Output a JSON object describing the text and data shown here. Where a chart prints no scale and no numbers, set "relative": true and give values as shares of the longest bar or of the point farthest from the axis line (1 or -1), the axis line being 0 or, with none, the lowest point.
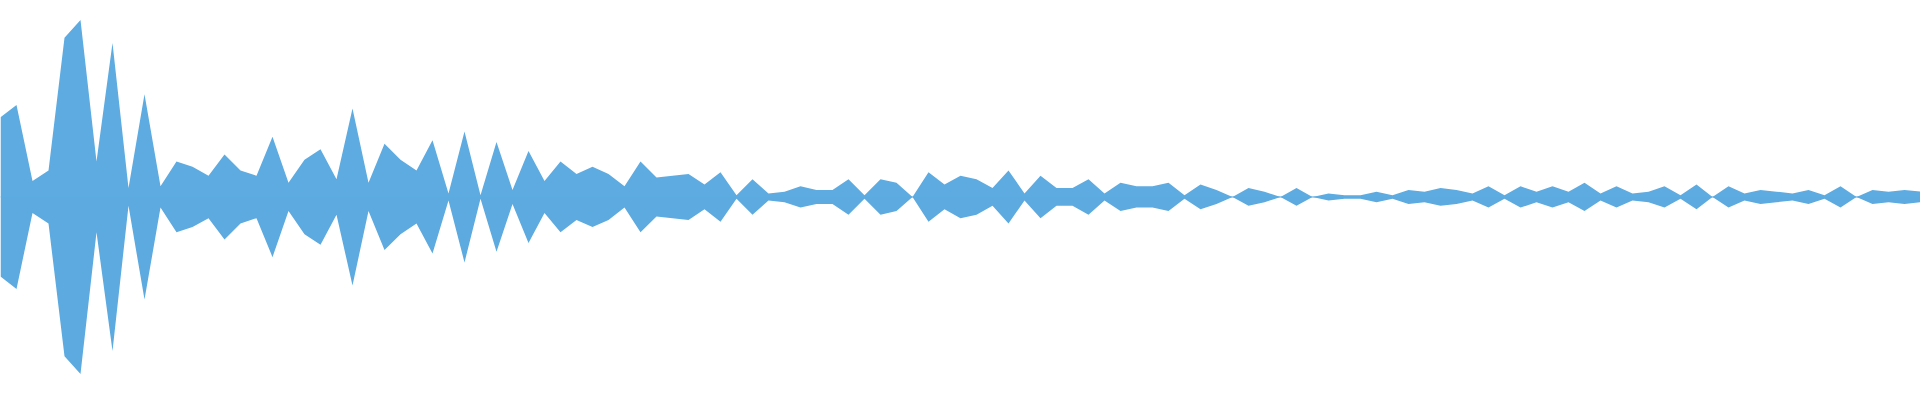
{
  "chart_data": {
    "type": "area",
    "relative": true,
    "tick_labels": false,
    "grid": false,
    "ref_lines": [
      {
        "axis": "y",
        "value": 0,
        "color": "#5dabe1"
      }
    ],
    "categories": [
      null,
      null,
      null,
      null,
      null,
      null,
      null,
      null,
      null,
      null,
      null,
      null,
      null,
      null,
      null,
      null,
      null,
      null,
      null,
      null,
      null,
      null,
      null,
      null,
      null,
      null,
      null,
      null,
      null,
      null,
      null,
      null,
      null,
      null,
      null,
      null,
      null,
      null,
      null,
      null,
      null,
      null,
      null,
      null,
      null,
      null,
      null,
      null,
      null,
      null,
      null,
      null,
      null,
      null,
      null,
      null,
      null,
      null,
      null,
      null,
      null,
      null,
      null,
      null,
      null,
      null,
      null,
      null,
      null,
      null,
      null,
      null,
      null,
      null,
      null,
      null,
      null,
      null,
      null,
      null,
      null,
      null,
      null,
      null,
      null,
      null,
      null,
      null,
      null,
      null,
      null,
      null,
      null,
      null,
      null,
      null,
      null,
      null,
      null,
      null,
      null,
      null,
      null,
      null,
      null,
      null,
      null,
      null,
      null,
      null,
      null,
      null,
      null,
      null,
      null,
      null,
      null,
      null,
      null,
      null,
      null
    ],
    "series": [
      {
        "color": "#5dabe1",
        "values": [
          0.45,
          0.52,
          0.09,
          0.15,
          0.9,
          1.0,
          0.2,
          0.87,
          0.05,
          0.58,
          0.06,
          0.2,
          0.17,
          0.12,
          0.24,
          0.15,
          0.12,
          0.34,
          0.08,
          0.21,
          0.27,
          0.1,
          0.5,
          0.08,
          0.3,
          0.21,
          0.15,
          0.32,
          0.02,
          0.37,
          0.01,
          0.31,
          0.04,
          0.26,
          0.09,
          0.2,
          0.13,
          0.17,
          0.13,
          0.06,
          0.2,
          0.11,
          0.12,
          0.13,
          0.07,
          0.14,
          0.01,
          0.1,
          0.02,
          0.03,
          0.06,
          0.04,
          0.04,
          0.1,
          0.01,
          0.1,
          0.08,
          0.0,
          0.14,
          0.07,
          0.12,
          0.1,
          0.05,
          0.15,
          0.02,
          0.12,
          0.05,
          0.05,
          0.1,
          0.02,
          0.08,
          0.06,
          0.06,
          0.08,
          0.01,
          0.07,
          0.04,
          0.0,
          0.05,
          0.03,
          0.0,
          0.05,
          0.0,
          0.02,
          0.01,
          0.01,
          0.03,
          0.01,
          0.04,
          0.03,
          0.05,
          0.04,
          0.02,
          0.06,
          0.01,
          0.06,
          0.03,
          0.06,
          0.03,
          0.08,
          0.02,
          0.06,
          0.02,
          0.03,
          0.06,
          0.01,
          0.07,
          0.0,
          0.06,
          0.02,
          0.04,
          0.03,
          0.02,
          0.04,
          0.01,
          0.06,
          0.0,
          0.04,
          0.03,
          0.04,
          0.03
        ]
      },
      {
        "color": "#5caae0",
        "values": [
          -0.45,
          -0.52,
          -0.09,
          -0.15,
          -0.9,
          -1.0,
          -0.2,
          -0.87,
          -0.05,
          -0.58,
          -0.06,
          -0.2,
          -0.17,
          -0.12,
          -0.24,
          -0.15,
          -0.12,
          -0.34,
          -0.08,
          -0.21,
          -0.27,
          -0.1,
          -0.5,
          -0.08,
          -0.3,
          -0.21,
          -0.15,
          -0.32,
          -0.02,
          -0.37,
          -0.01,
          -0.31,
          -0.04,
          -0.26,
          -0.09,
          -0.2,
          -0.13,
          -0.17,
          -0.13,
          -0.06,
          -0.2,
          -0.11,
          -0.12,
          -0.13,
          -0.07,
          -0.14,
          -0.01,
          -0.1,
          -0.02,
          -0.03,
          -0.06,
          -0.04,
          -0.04,
          -0.1,
          -0.01,
          -0.1,
          -0.08,
          0.0,
          -0.14,
          -0.07,
          -0.12,
          -0.1,
          -0.05,
          -0.15,
          -0.02,
          -0.12,
          -0.05,
          -0.05,
          -0.1,
          -0.02,
          -0.08,
          -0.06,
          -0.06,
          -0.08,
          -0.01,
          -0.07,
          -0.04,
          0.0,
          -0.05,
          -0.03,
          0.0,
          -0.05,
          0.0,
          -0.02,
          -0.01,
          -0.01,
          -0.03,
          -0.01,
          -0.04,
          -0.03,
          -0.05,
          -0.04,
          -0.02,
          -0.06,
          -0.01,
          -0.06,
          -0.03,
          -0.06,
          -0.03,
          -0.08,
          -0.02,
          -0.06,
          -0.02,
          -0.03,
          -0.06,
          -0.01,
          -0.07,
          0.0,
          -0.06,
          -0.02,
          -0.04,
          -0.03,
          -0.02,
          -0.04,
          -0.01,
          -0.06,
          0.0,
          -0.04,
          -0.03,
          -0.04,
          -0.03
        ]
      }
    ]
  }
}
